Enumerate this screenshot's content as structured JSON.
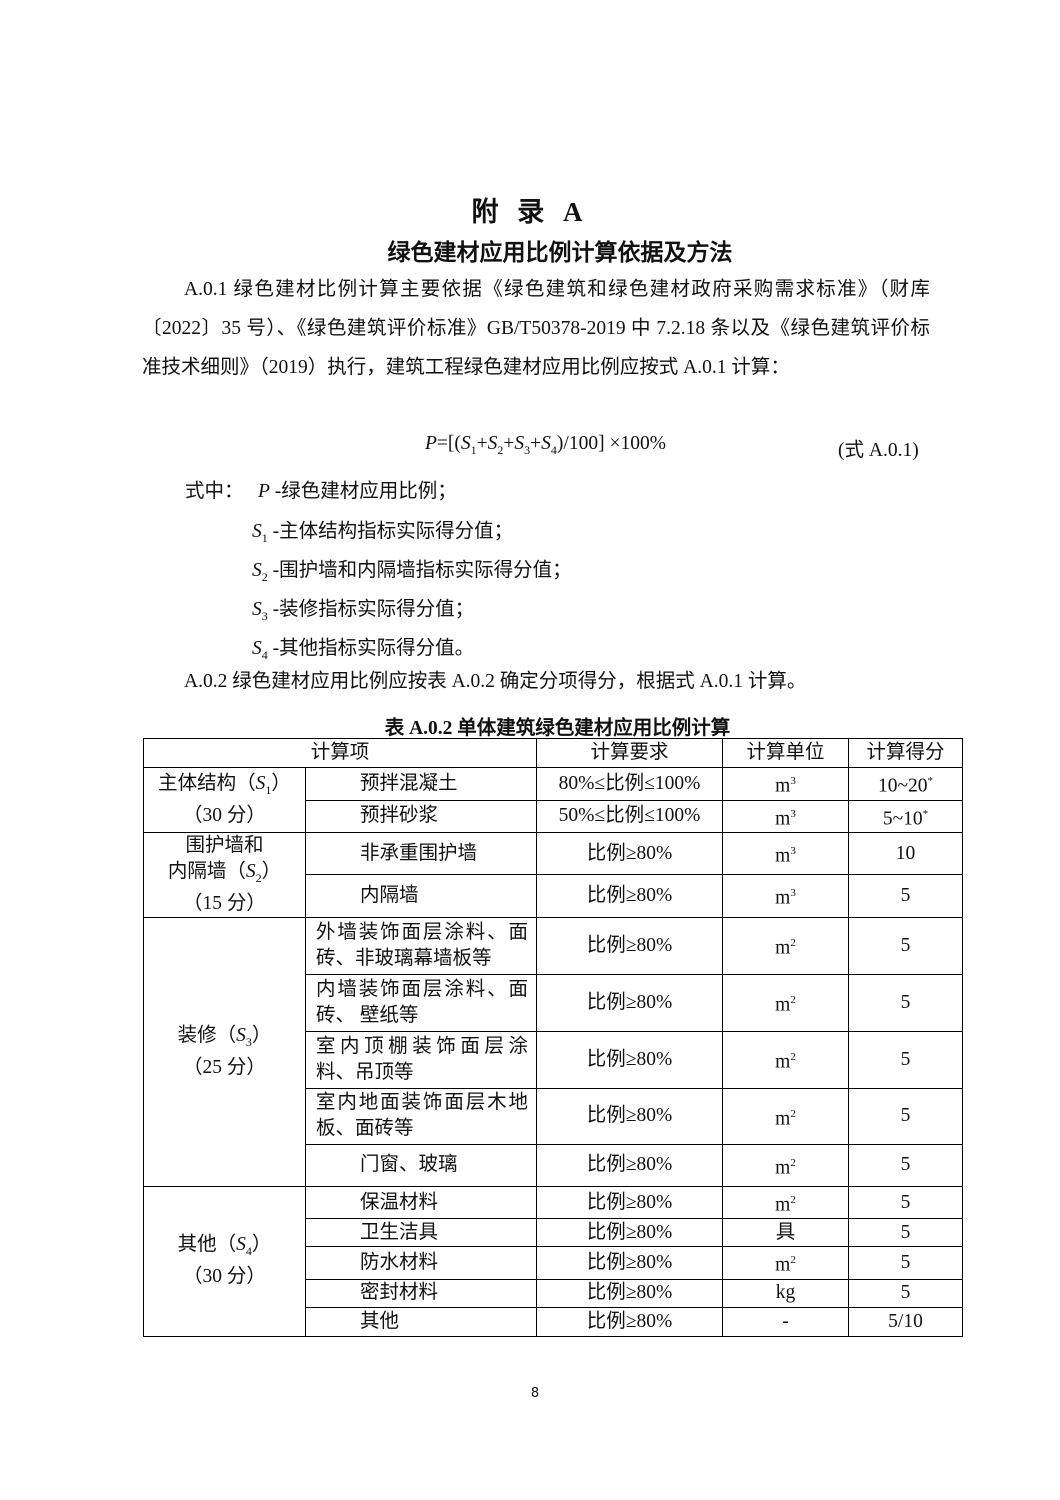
{
  "appendix_title": "附 录 A",
  "subtitle": "绿色建材应用比例计算依据及方法",
  "para1": "A.0.1  绿色建材比例计算主要依据《绿色建筑和绿色建材政府采购需求标准》（财库〔2022〕35 号）、《绿色建筑评价标准》GB/T50378-2019 中 7.2.18 条以及《绿色建筑评价标准技术细则》（2019）执行，建筑工程绿色建材应用比例应按式 A.0.1 计算：",
  "formula": "P=[(S1+S2+S3+S4)/100] ×100%",
  "formula_no": "(式 A.0.1)",
  "where_label": "式中：",
  "vars": [
    {
      "sym": "P",
      "sub": "",
      "desc": " -绿色建材应用比例；"
    },
    {
      "sym": "S",
      "sub": "1",
      "desc": " -主体结构指标实际得分值；"
    },
    {
      "sym": "S",
      "sub": "2",
      "desc": " -围护墙和内隔墙指标实际得分值；"
    },
    {
      "sym": "S",
      "sub": "3",
      "desc": " -装修指标实际得分值；"
    },
    {
      "sym": "S",
      "sub": "4",
      "desc": " -其他指标实际得分值。"
    }
  ],
  "para2": "A.0.2  绿色建材应用比例应按表 A.0.2 确定分项得分，根据式 A.0.1 计算。",
  "table_caption": "表 A.0.2    单体建筑绿色建材应用比例计算",
  "table": {
    "headers": [
      "计算项",
      "计算要求",
      "计算单位",
      "计算得分"
    ],
    "groups": [
      {
        "name": "主体结构（S1）",
        "points": "（30 分）"
      },
      {
        "name": "围护墙和内隔墙（S2）",
        "points": "（15 分）"
      },
      {
        "name": "装修（S3）",
        "points": "（25 分）"
      },
      {
        "name": "其他（S4）",
        "points": "（30 分）"
      }
    ],
    "rows": [
      {
        "item": "预拌混凝土",
        "req": "80%≤比例≤100%",
        "unit": "m",
        "unit_sup": "3",
        "score": "10~20",
        "score_sup": "*"
      },
      {
        "item": "预拌砂浆",
        "req": "50%≤比例≤100%",
        "unit": "m",
        "unit_sup": "3",
        "score": "5~10",
        "score_sup": "*"
      },
      {
        "item": "非承重围护墙",
        "req": "比例≥80%",
        "unit": "m",
        "unit_sup": "3",
        "score": "10"
      },
      {
        "item": "内隔墙",
        "req": "比例≥80%",
        "unit": "m",
        "unit_sup": "3",
        "score": "5"
      },
      {
        "item": "外墙装饰面层涂料、面砖、非玻璃幕墙板等",
        "req": "比例≥80%",
        "unit": "m",
        "unit_sup": "2",
        "score": "5"
      },
      {
        "item": "内墙装饰面层涂料、面砖、 壁纸等",
        "req": "比例≥80%",
        "unit": "m",
        "unit_sup": "2",
        "score": "5"
      },
      {
        "item": "室内顶棚装饰面层涂料、吊顶等",
        "req": "比例≥80%",
        "unit": "m",
        "unit_sup": "2",
        "score": "5"
      },
      {
        "item": "室内地面装饰面层木地板、面砖等",
        "req": "比例≥80%",
        "unit": "m",
        "unit_sup": "2",
        "score": "5"
      },
      {
        "item": "门窗、玻璃",
        "req": "比例≥80%",
        "unit": "m",
        "unit_sup": "2",
        "score": "5"
      },
      {
        "item": "保温材料",
        "req": "比例≥80%",
        "unit": "m",
        "unit_sup": "2",
        "score": "5"
      },
      {
        "item": "卫生洁具",
        "req": "比例≥80%",
        "unit": "具",
        "score": "5"
      },
      {
        "item": "防水材料",
        "req": "比例≥80%",
        "unit": "m",
        "unit_sup": "2",
        "score": "5"
      },
      {
        "item": "密封材料",
        "req": "比例≥80%",
        "unit": "kg",
        "score": "5"
      },
      {
        "item": "其他",
        "req": "比例≥80%",
        "unit": "-",
        "score": "5/10"
      }
    ]
  },
  "page_number": "8"
}
